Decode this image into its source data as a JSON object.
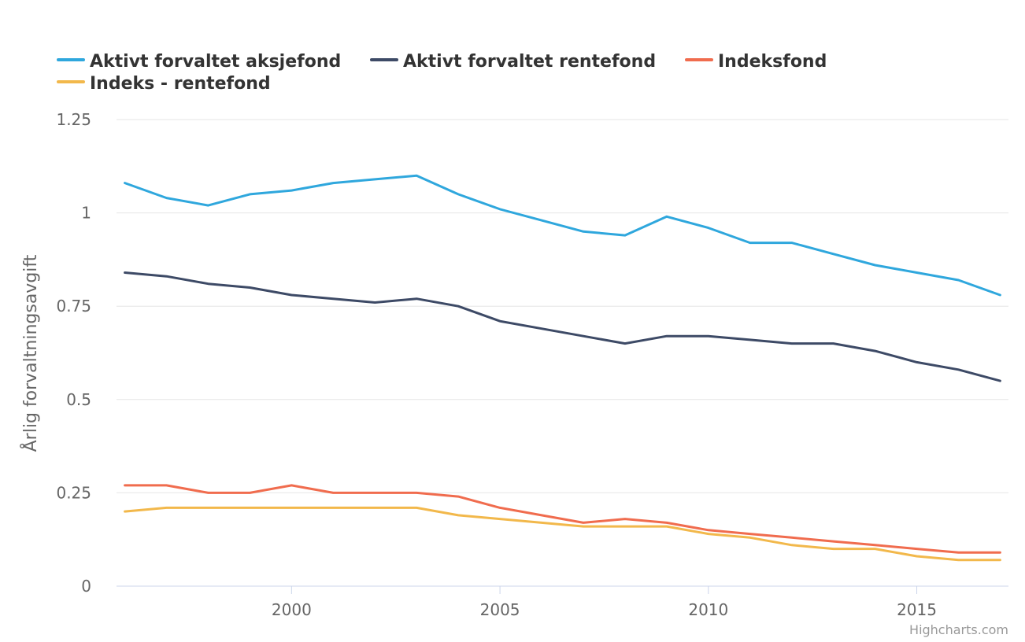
{
  "chart_data": {
    "type": "line",
    "title": "",
    "xlabel": "",
    "ylabel": "Årlig forvaltningsavgift",
    "ylim": [
      0,
      1.25
    ],
    "xlim": [
      1996,
      2017
    ],
    "y_ticks": [
      "0",
      "0.25",
      "0.5",
      "0.75",
      "1",
      "1.25"
    ],
    "x_ticks": [
      "2000",
      "2005",
      "2010",
      "2015"
    ],
    "legend_position": "top-left",
    "x": [
      1996,
      1997,
      1998,
      1999,
      2000,
      2001,
      2002,
      2003,
      2004,
      2005,
      2006,
      2007,
      2008,
      2009,
      2010,
      2011,
      2012,
      2013,
      2014,
      2015,
      2016,
      2017
    ],
    "series": [
      {
        "name": "Aktivt forvaltet aksjefond",
        "color": "#2fa7dd",
        "values": [
          1.08,
          1.04,
          1.02,
          1.05,
          1.06,
          1.08,
          1.09,
          1.1,
          1.05,
          1.01,
          0.98,
          0.95,
          0.94,
          0.99,
          0.96,
          0.92,
          0.92,
          0.89,
          0.86,
          0.84,
          0.82,
          0.78
        ]
      },
      {
        "name": "Aktivt forvaltet rentefond",
        "color": "#3d4a66",
        "values": [
          0.84,
          0.83,
          0.81,
          0.8,
          0.78,
          0.77,
          0.76,
          0.77,
          0.75,
          0.71,
          0.69,
          0.67,
          0.65,
          0.67,
          0.67,
          0.66,
          0.65,
          0.65,
          0.63,
          0.6,
          0.58,
          0.55
        ]
      },
      {
        "name": "Indeksfond",
        "color": "#f06c4e",
        "values": [
          0.27,
          0.27,
          0.25,
          0.25,
          0.27,
          0.25,
          0.25,
          0.25,
          0.24,
          0.21,
          0.19,
          0.17,
          0.18,
          0.17,
          0.15,
          0.14,
          0.13,
          0.12,
          0.11,
          0.1,
          0.09,
          0.09
        ]
      },
      {
        "name": "Indeks - rentefond",
        "color": "#f2b84b",
        "values": [
          0.2,
          0.21,
          0.21,
          0.21,
          0.21,
          0.21,
          0.21,
          0.21,
          0.19,
          0.18,
          0.17,
          0.16,
          0.16,
          0.16,
          0.14,
          0.13,
          0.11,
          0.1,
          0.1,
          0.08,
          0.07,
          0.07
        ]
      }
    ]
  },
  "credits": "Highcharts.com"
}
